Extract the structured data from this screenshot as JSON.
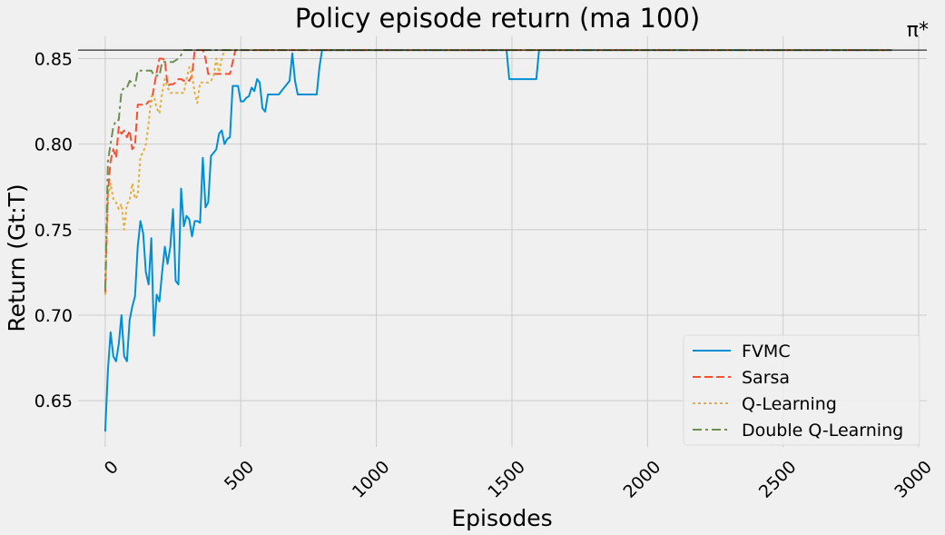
{
  "chart_data": {
    "type": "line",
    "title": "Policy episode return (ma 100)",
    "xlabel": "Episodes",
    "ylabel": "Return (Gt:T)",
    "xlim": [
      -100,
      3030
    ],
    "ylim": [
      0.623,
      0.863
    ],
    "xticks": [
      0,
      500,
      1000,
      1500,
      2000,
      2500,
      3000
    ],
    "yticks": [
      0.65,
      0.7,
      0.75,
      0.8,
      0.85
    ],
    "grid": true,
    "legend_position": "lower-right",
    "reference_line": {
      "label": "π*",
      "value": 0.855,
      "color": "#000000"
    },
    "series": [
      {
        "name": "FVMC",
        "color": "#008fd5",
        "style": "solid",
        "points": [
          [
            0,
            0.632
          ],
          [
            10,
            0.668
          ],
          [
            20,
            0.69
          ],
          [
            30,
            0.676
          ],
          [
            40,
            0.673
          ],
          [
            50,
            0.683
          ],
          [
            60,
            0.7
          ],
          [
            70,
            0.676
          ],
          [
            80,
            0.673
          ],
          [
            90,
            0.697
          ],
          [
            100,
            0.705
          ],
          [
            110,
            0.711
          ],
          [
            120,
            0.74
          ],
          [
            130,
            0.755
          ],
          [
            140,
            0.748
          ],
          [
            150,
            0.725
          ],
          [
            160,
            0.718
          ],
          [
            170,
            0.745
          ],
          [
            180,
            0.688
          ],
          [
            190,
            0.712
          ],
          [
            200,
            0.708
          ],
          [
            210,
            0.725
          ],
          [
            220,
            0.74
          ],
          [
            230,
            0.73
          ],
          [
            240,
            0.74
          ],
          [
            250,
            0.762
          ],
          [
            260,
            0.72
          ],
          [
            270,
            0.718
          ],
          [
            280,
            0.774
          ],
          [
            290,
            0.752
          ],
          [
            300,
            0.758
          ],
          [
            310,
            0.756
          ],
          [
            320,
            0.746
          ],
          [
            330,
            0.755
          ],
          [
            340,
            0.755
          ],
          [
            350,
            0.754
          ],
          [
            360,
            0.792
          ],
          [
            370,
            0.763
          ],
          [
            380,
            0.766
          ],
          [
            390,
            0.793
          ],
          [
            400,
            0.795
          ],
          [
            410,
            0.797
          ],
          [
            420,
            0.806
          ],
          [
            430,
            0.808
          ],
          [
            440,
            0.8
          ],
          [
            450,
            0.803
          ],
          [
            460,
            0.804
          ],
          [
            470,
            0.834
          ],
          [
            480,
            0.834
          ],
          [
            490,
            0.834
          ],
          [
            500,
            0.825
          ],
          [
            510,
            0.825
          ],
          [
            520,
            0.827
          ],
          [
            530,
            0.828
          ],
          [
            540,
            0.833
          ],
          [
            550,
            0.831
          ],
          [
            560,
            0.838
          ],
          [
            570,
            0.836
          ],
          [
            580,
            0.821
          ],
          [
            590,
            0.819
          ],
          [
            600,
            0.829
          ],
          [
            620,
            0.829
          ],
          [
            640,
            0.829
          ],
          [
            660,
            0.833
          ],
          [
            680,
            0.837
          ],
          [
            690,
            0.853
          ],
          [
            700,
            0.837
          ],
          [
            710,
            0.829
          ],
          [
            740,
            0.829
          ],
          [
            770,
            0.829
          ],
          [
            780,
            0.829
          ],
          [
            790,
            0.845
          ],
          [
            800,
            0.855
          ],
          [
            1480,
            0.855
          ],
          [
            1490,
            0.838
          ],
          [
            1590,
            0.838
          ],
          [
            1600,
            0.855
          ],
          [
            2900,
            0.855
          ]
        ]
      },
      {
        "name": "Sarsa",
        "color": "#fc4f30",
        "style": "dashed",
        "points": [
          [
            0,
            0.713
          ],
          [
            10,
            0.772
          ],
          [
            20,
            0.79
          ],
          [
            30,
            0.797
          ],
          [
            40,
            0.792
          ],
          [
            50,
            0.81
          ],
          [
            60,
            0.806
          ],
          [
            70,
            0.808
          ],
          [
            80,
            0.804
          ],
          [
            90,
            0.808
          ],
          [
            100,
            0.797
          ],
          [
            110,
            0.799
          ],
          [
            120,
            0.823
          ],
          [
            130,
            0.823
          ],
          [
            140,
            0.823
          ],
          [
            150,
            0.823
          ],
          [
            160,
            0.825
          ],
          [
            170,
            0.825
          ],
          [
            180,
            0.833
          ],
          [
            190,
            0.842
          ],
          [
            200,
            0.85
          ],
          [
            210,
            0.85
          ],
          [
            220,
            0.849
          ],
          [
            230,
            0.834
          ],
          [
            240,
            0.835
          ],
          [
            250,
            0.835
          ],
          [
            260,
            0.836
          ],
          [
            270,
            0.838
          ],
          [
            280,
            0.838
          ],
          [
            290,
            0.837
          ],
          [
            300,
            0.838
          ],
          [
            310,
            0.837
          ],
          [
            320,
            0.84
          ],
          [
            330,
            0.855
          ],
          [
            340,
            0.855
          ],
          [
            350,
            0.855
          ],
          [
            360,
            0.855
          ],
          [
            370,
            0.85
          ],
          [
            380,
            0.841
          ],
          [
            390,
            0.841
          ],
          [
            400,
            0.841
          ],
          [
            410,
            0.841
          ],
          [
            420,
            0.841
          ],
          [
            430,
            0.841
          ],
          [
            440,
            0.841
          ],
          [
            450,
            0.841
          ],
          [
            460,
            0.841
          ],
          [
            470,
            0.848
          ],
          [
            480,
            0.855
          ],
          [
            2900,
            0.855
          ]
        ]
      },
      {
        "name": "Q-Learning",
        "color": "#e5ae38",
        "style": "dotted",
        "points": [
          [
            0,
            0.712
          ],
          [
            10,
            0.768
          ],
          [
            20,
            0.777
          ],
          [
            30,
            0.768
          ],
          [
            40,
            0.766
          ],
          [
            50,
            0.762
          ],
          [
            60,
            0.765
          ],
          [
            70,
            0.75
          ],
          [
            80,
            0.765
          ],
          [
            90,
            0.767
          ],
          [
            100,
            0.777
          ],
          [
            110,
            0.768
          ],
          [
            120,
            0.77
          ],
          [
            130,
            0.793
          ],
          [
            140,
            0.795
          ],
          [
            150,
            0.8
          ],
          [
            160,
            0.812
          ],
          [
            170,
            0.828
          ],
          [
            180,
            0.828
          ],
          [
            190,
            0.821
          ],
          [
            200,
            0.818
          ],
          [
            210,
            0.83
          ],
          [
            220,
            0.838
          ],
          [
            230,
            0.833
          ],
          [
            240,
            0.83
          ],
          [
            250,
            0.83
          ],
          [
            260,
            0.83
          ],
          [
            270,
            0.83
          ],
          [
            280,
            0.83
          ],
          [
            290,
            0.83
          ],
          [
            300,
            0.838
          ],
          [
            310,
            0.845
          ],
          [
            320,
            0.84
          ],
          [
            330,
            0.83
          ],
          [
            340,
            0.824
          ],
          [
            350,
            0.836
          ],
          [
            360,
            0.836
          ],
          [
            370,
            0.836
          ],
          [
            380,
            0.836
          ],
          [
            390,
            0.837
          ],
          [
            400,
            0.84
          ],
          [
            410,
            0.85
          ],
          [
            420,
            0.842
          ],
          [
            430,
            0.85
          ],
          [
            440,
            0.855
          ],
          [
            2900,
            0.855
          ]
        ]
      },
      {
        "name": "Double Q-Learning",
        "color": "#6d904f",
        "style": "dashdot",
        "points": [
          [
            0,
            0.715
          ],
          [
            10,
            0.79
          ],
          [
            20,
            0.8
          ],
          [
            30,
            0.81
          ],
          [
            40,
            0.814
          ],
          [
            50,
            0.814
          ],
          [
            60,
            0.831
          ],
          [
            70,
            0.833
          ],
          [
            80,
            0.833
          ],
          [
            90,
            0.837
          ],
          [
            100,
            0.836
          ],
          [
            110,
            0.834
          ],
          [
            120,
            0.843
          ],
          [
            130,
            0.843
          ],
          [
            140,
            0.843
          ],
          [
            150,
            0.843
          ],
          [
            160,
            0.843
          ],
          [
            170,
            0.843
          ],
          [
            180,
            0.84
          ],
          [
            190,
            0.84
          ],
          [
            200,
            0.84
          ],
          [
            210,
            0.848
          ],
          [
            220,
            0.848
          ],
          [
            230,
            0.848
          ],
          [
            240,
            0.848
          ],
          [
            250,
            0.848
          ],
          [
            260,
            0.849
          ],
          [
            270,
            0.85
          ],
          [
            280,
            0.852
          ],
          [
            290,
            0.855
          ],
          [
            2900,
            0.855
          ]
        ]
      }
    ]
  }
}
